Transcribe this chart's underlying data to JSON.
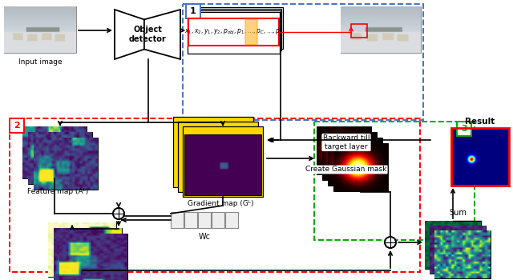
{
  "bg_color": "#ffffff",
  "fig_width": 6.4,
  "fig_height": 3.5,
  "dpi": 100,
  "label1": "1",
  "label2": "2",
  "label3": "3",
  "text_input_image": "Input image",
  "text_object_detector": "Object\ndetector",
  "text_feature_map": "Feature map (Aᴸ)",
  "text_gradient_map": "Gradient map (Gᴸ)",
  "text_backward": "Backward till\ntarget layer",
  "text_create_gauss": "Create Gaussian mask",
  "text_wc": "Wᴄ",
  "text_result": "Result",
  "text_sum": "Sum",
  "blue_color": "#4472C4",
  "red_color": "#FF0000",
  "green_color": "#00AA00",
  "orange_color": "#FFA500",
  "yellow_color": "#FFD700"
}
